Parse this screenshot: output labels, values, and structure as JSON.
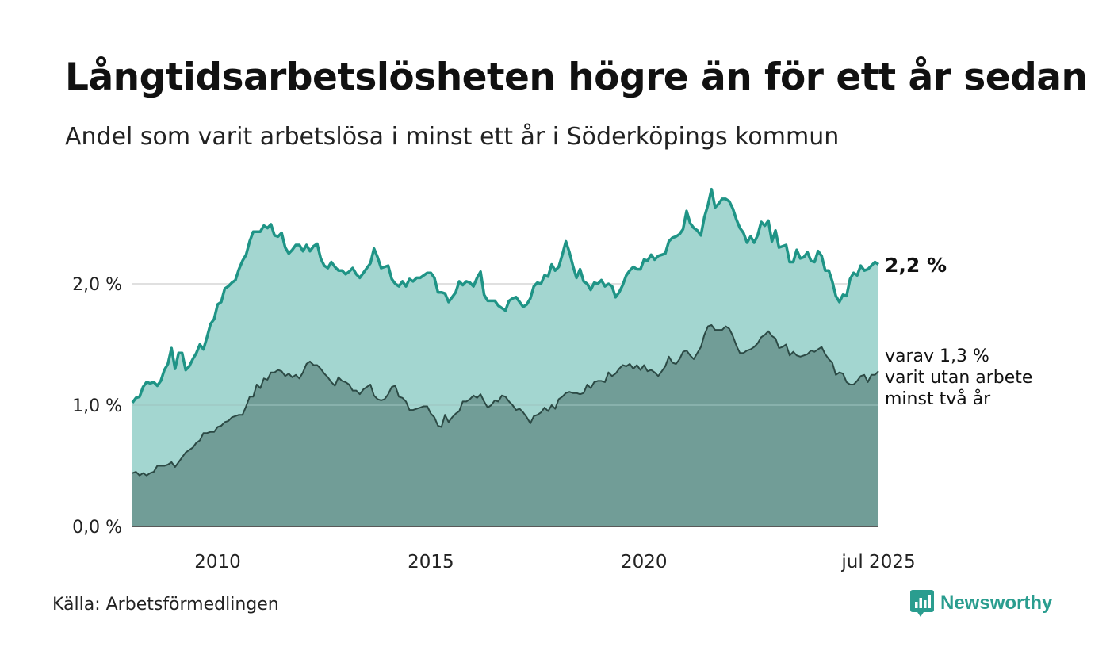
{
  "title": "Långtidsarbetslösheten högre än för ett år sedan",
  "subtitle": "Andel som varit arbetslösa i minst ett år i Söderköpings kommun",
  "source": "Källa: Arbetsförmedlingen",
  "brand": "Newsworthy",
  "colors": {
    "area_total": "#a3d6d0",
    "line_total": "#1f9486",
    "area_long": "#719d97",
    "line_long": "#2c4a45",
    "grid": "#d6d6d6",
    "brand": "#2a9d8f"
  },
  "chart_data": {
    "type": "area",
    "x_start": "2008-01",
    "x_end": "2025-07",
    "frequency": "monthly",
    "ylim": [
      0,
      3
    ],
    "y_ticks": [
      "0,0 %",
      "1,0 %",
      "2,0 %"
    ],
    "x_ticks": [
      "2010",
      "2015",
      "2020",
      "jul 2025"
    ],
    "grid": "horizontal",
    "annotations": {
      "total_end": "2,2 %",
      "long_end_1": "varav 1,3 %",
      "long_end_2": "varit utan arbete",
      "long_end_3": "minst två år"
    },
    "series": [
      {
        "name": "minst ett år",
        "values": [
          1.02,
          1.06,
          1.07,
          1.15,
          1.19,
          1.18,
          1.19,
          1.16,
          1.2,
          1.29,
          1.34,
          1.47,
          1.3,
          1.43,
          1.43,
          1.29,
          1.32,
          1.38,
          1.43,
          1.5,
          1.46,
          1.56,
          1.67,
          1.71,
          1.83,
          1.85,
          1.96,
          1.98,
          2.01,
          2.03,
          2.12,
          2.19,
          2.24,
          2.35,
          2.43,
          2.43,
          2.43,
          2.48,
          2.46,
          2.49,
          2.4,
          2.39,
          2.42,
          2.3,
          2.25,
          2.28,
          2.32,
          2.32,
          2.27,
          2.32,
          2.27,
          2.31,
          2.33,
          2.21,
          2.15,
          2.13,
          2.18,
          2.14,
          2.11,
          2.11,
          2.08,
          2.1,
          2.13,
          2.08,
          2.05,
          2.09,
          2.13,
          2.17,
          2.29,
          2.22,
          2.13,
          2.14,
          2.15,
          2.04,
          2.0,
          1.98,
          2.02,
          1.98,
          2.04,
          2.02,
          2.05,
          2.05,
          2.07,
          2.09,
          2.09,
          2.05,
          1.93,
          1.93,
          1.92,
          1.85,
          1.89,
          1.93,
          2.02,
          1.99,
          2.02,
          2.01,
          1.98,
          2.05,
          2.1,
          1.91,
          1.86,
          1.86,
          1.86,
          1.82,
          1.8,
          1.78,
          1.86,
          1.88,
          1.89,
          1.85,
          1.81,
          1.83,
          1.88,
          1.98,
          2.01,
          2.0,
          2.07,
          2.06,
          2.16,
          2.11,
          2.14,
          2.24,
          2.35,
          2.26,
          2.15,
          2.05,
          2.12,
          2.02,
          2.0,
          1.95,
          2.01,
          2.0,
          2.03,
          1.98,
          2.0,
          1.98,
          1.89,
          1.93,
          1.99,
          2.07,
          2.11,
          2.14,
          2.12,
          2.12,
          2.2,
          2.19,
          2.24,
          2.2,
          2.23,
          2.24,
          2.25,
          2.35,
          2.38,
          2.39,
          2.41,
          2.45,
          2.6,
          2.5,
          2.46,
          2.44,
          2.4,
          2.55,
          2.65,
          2.78,
          2.63,
          2.66,
          2.7,
          2.7,
          2.68,
          2.62,
          2.53,
          2.46,
          2.42,
          2.34,
          2.39,
          2.34,
          2.4,
          2.51,
          2.48,
          2.52,
          2.35,
          2.44,
          2.3,
          2.31,
          2.32,
          2.18,
          2.18,
          2.28,
          2.21,
          2.22,
          2.26,
          2.19,
          2.18,
          2.27,
          2.23,
          2.11,
          2.11,
          2.02,
          1.9,
          1.85,
          1.91,
          1.9,
          2.04,
          2.09,
          2.07,
          2.15,
          2.11,
          2.12,
          2.15,
          2.18,
          2.16
        ]
      },
      {
        "name": "minst två år",
        "values": [
          0.44,
          0.45,
          0.42,
          0.44,
          0.42,
          0.44,
          0.45,
          0.5,
          0.5,
          0.5,
          0.51,
          0.53,
          0.49,
          0.53,
          0.57,
          0.61,
          0.63,
          0.65,
          0.69,
          0.71,
          0.77,
          0.77,
          0.78,
          0.78,
          0.82,
          0.83,
          0.86,
          0.87,
          0.9,
          0.91,
          0.92,
          0.92,
          0.99,
          1.07,
          1.07,
          1.17,
          1.14,
          1.22,
          1.21,
          1.27,
          1.27,
          1.29,
          1.28,
          1.24,
          1.26,
          1.23,
          1.25,
          1.22,
          1.27,
          1.34,
          1.36,
          1.33,
          1.33,
          1.3,
          1.26,
          1.23,
          1.19,
          1.16,
          1.23,
          1.2,
          1.19,
          1.17,
          1.12,
          1.12,
          1.09,
          1.13,
          1.15,
          1.17,
          1.08,
          1.05,
          1.04,
          1.05,
          1.09,
          1.15,
          1.16,
          1.07,
          1.06,
          1.03,
          0.96,
          0.96,
          0.97,
          0.98,
          0.99,
          0.99,
          0.93,
          0.9,
          0.83,
          0.82,
          0.92,
          0.86,
          0.9,
          0.93,
          0.95,
          1.03,
          1.03,
          1.05,
          1.08,
          1.06,
          1.09,
          1.03,
          0.98,
          1.0,
          1.04,
          1.03,
          1.08,
          1.07,
          1.03,
          1.0,
          0.96,
          0.97,
          0.94,
          0.9,
          0.85,
          0.91,
          0.92,
          0.94,
          0.98,
          0.95,
          1.0,
          0.97,
          1.05,
          1.07,
          1.1,
          1.11,
          1.1,
          1.1,
          1.09,
          1.1,
          1.17,
          1.14,
          1.19,
          1.2,
          1.2,
          1.19,
          1.27,
          1.24,
          1.26,
          1.3,
          1.33,
          1.32,
          1.34,
          1.3,
          1.33,
          1.29,
          1.33,
          1.28,
          1.29,
          1.27,
          1.24,
          1.28,
          1.32,
          1.4,
          1.35,
          1.34,
          1.38,
          1.44,
          1.45,
          1.41,
          1.38,
          1.43,
          1.48,
          1.58,
          1.65,
          1.66,
          1.62,
          1.62,
          1.62,
          1.65,
          1.63,
          1.57,
          1.49,
          1.43,
          1.43,
          1.45,
          1.46,
          1.48,
          1.51,
          1.56,
          1.58,
          1.61,
          1.57,
          1.55,
          1.47,
          1.48,
          1.5,
          1.41,
          1.44,
          1.41,
          1.4,
          1.41,
          1.42,
          1.45,
          1.44,
          1.46,
          1.48,
          1.42,
          1.38,
          1.35,
          1.25,
          1.27,
          1.26,
          1.19,
          1.17,
          1.17,
          1.2,
          1.24,
          1.25,
          1.19,
          1.25,
          1.25,
          1.28
        ]
      }
    ]
  }
}
